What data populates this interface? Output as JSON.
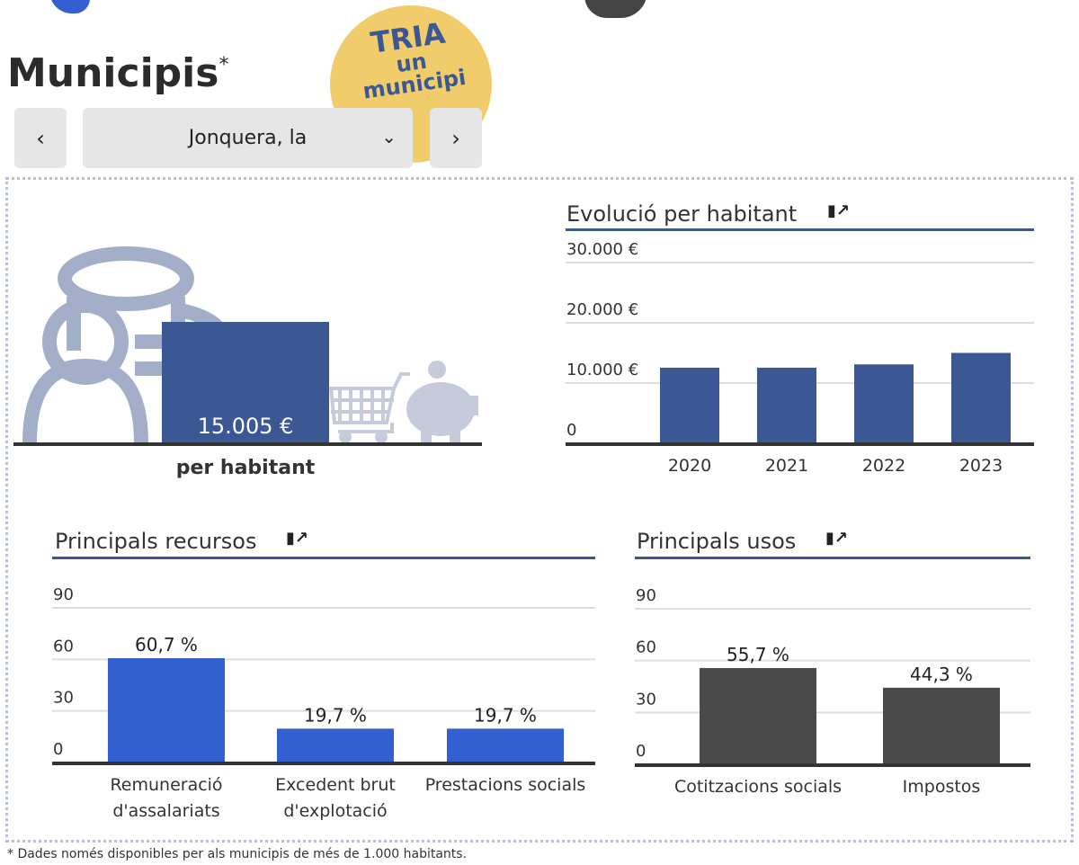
{
  "header": {
    "title": "Municipis",
    "title_mark": "*",
    "badge_line1": "TRIA",
    "badge_line2": "un",
    "badge_line3": "municipi"
  },
  "selector": {
    "prev_label": "‹",
    "next_label": "›",
    "value": "Jonquera, la",
    "chevron": "⌄"
  },
  "summary": {
    "value": "15.005 €",
    "label": "per habitant"
  },
  "colors": {
    "navy": "#3b5894",
    "blue": "#3360d0",
    "dark": "#4a4a4a",
    "icon": "#a3afc9"
  },
  "footer": "* Dades només disponibles per als municipis de més de 1.000 habitants.",
  "chart_data": [
    {
      "type": "bar",
      "title": "Evolució per habitant",
      "categories": [
        "2020",
        "2021",
        "2022",
        "2023"
      ],
      "values": [
        12550,
        12550,
        13100,
        15005
      ],
      "ylim": [
        0,
        30000
      ],
      "yticks": [
        0,
        10000,
        20000,
        30000
      ],
      "ytick_labels": [
        "0",
        "10.000 €",
        "20.000 €",
        "30.000 €"
      ],
      "xlabel": "",
      "ylabel": "",
      "grid": true
    },
    {
      "type": "bar",
      "title": "Principals recursos",
      "categories": [
        "Remuneració d'assalariats",
        "Excedent brut d'explotació",
        "Prestacions socials"
      ],
      "category_lines": [
        [
          "Remuneració",
          "d'assalariats"
        ],
        [
          "Excedent brut",
          "d'explotació"
        ],
        [
          "Prestacions socials"
        ]
      ],
      "values": [
        60.7,
        19.7,
        19.7
      ],
      "data_labels": [
        "60,7 %",
        "19,7 %",
        "19,7 %"
      ],
      "ylim": [
        0,
        90
      ],
      "yticks": [
        0,
        30,
        60,
        90
      ],
      "ytick_labels": [
        "0",
        "30",
        "60",
        "90"
      ],
      "grid": true
    },
    {
      "type": "bar",
      "title": "Principals usos",
      "categories": [
        "Cotitzacions socials",
        "Impostos"
      ],
      "category_lines": [
        [
          "Cotitzacions socials"
        ],
        [
          "Impostos"
        ]
      ],
      "values": [
        55.7,
        44.3
      ],
      "data_labels": [
        "55,7 %",
        "44,3 %"
      ],
      "ylim": [
        0,
        90
      ],
      "yticks": [
        0,
        30,
        60,
        90
      ],
      "ytick_labels": [
        "0",
        "30",
        "60",
        "90"
      ],
      "grid": true
    }
  ]
}
